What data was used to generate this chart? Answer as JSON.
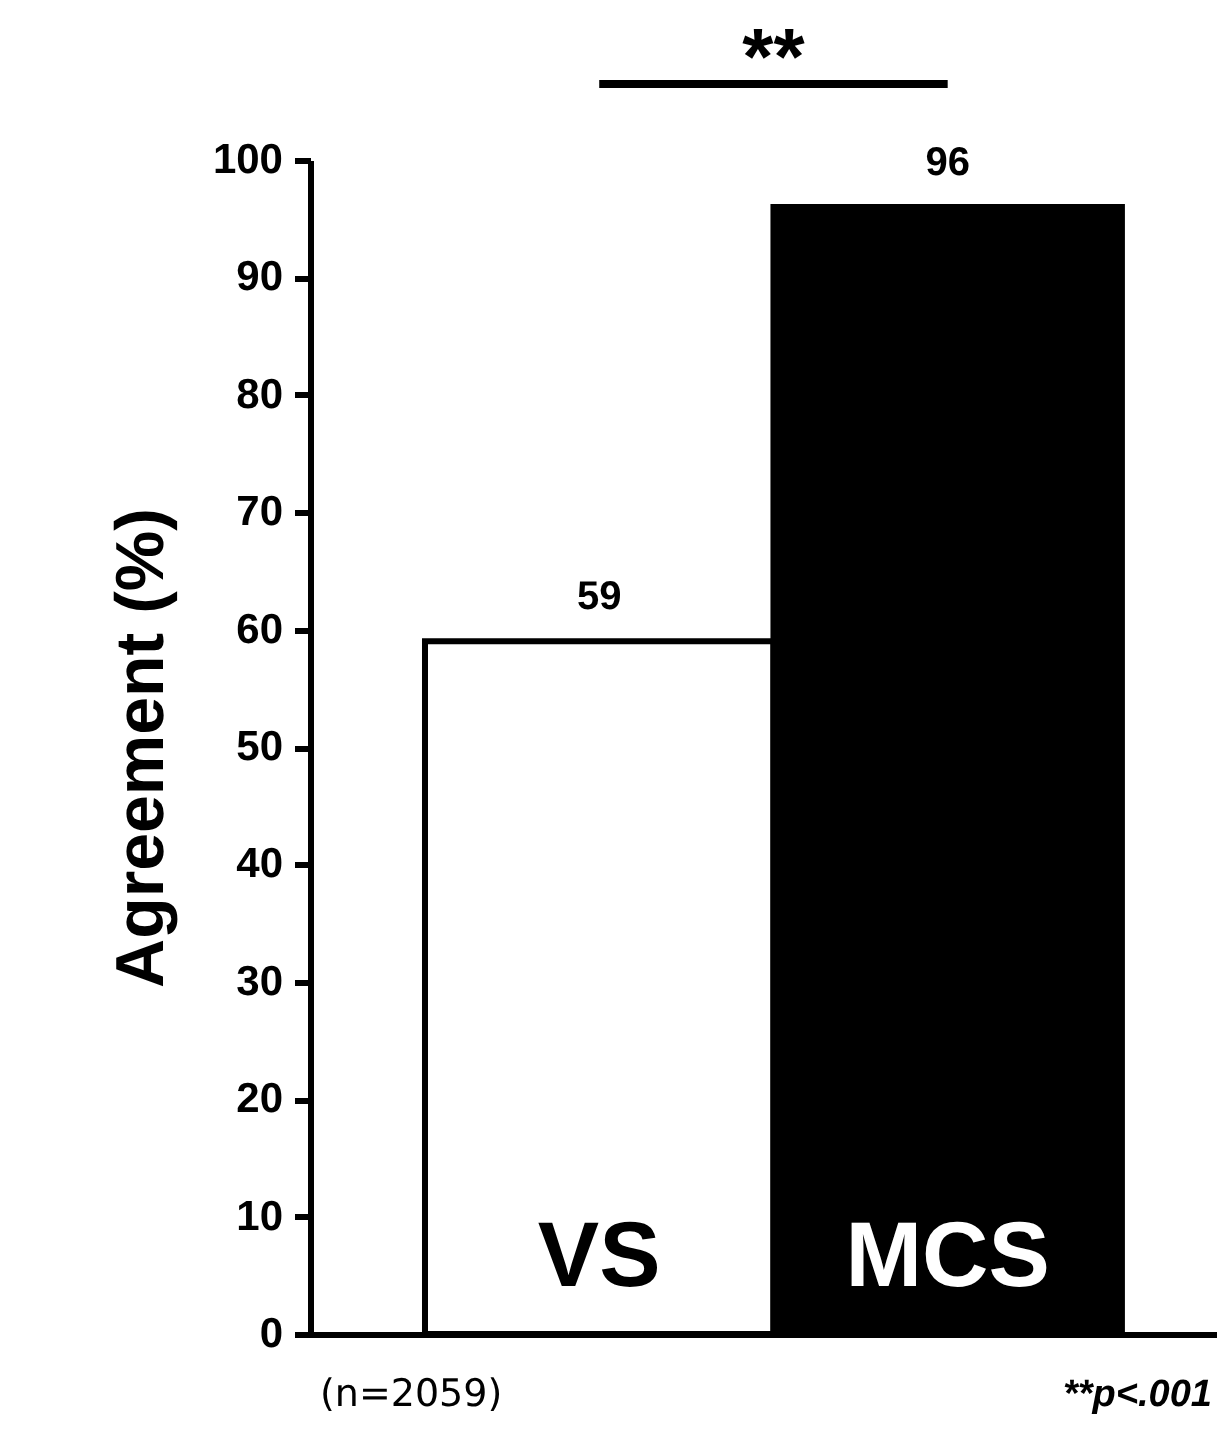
{
  "chart_data": {
    "type": "bar",
    "ylabel": "Agreement (%)",
    "categories": [
      "VS",
      "MCS"
    ],
    "values": [
      59,
      96
    ],
    "colors": [
      "#ffffff",
      "#000000"
    ],
    "ylim": [
      0,
      100
    ],
    "yticks": [
      0,
      10,
      20,
      30,
      40,
      50,
      60,
      70,
      80,
      90,
      100
    ],
    "grid": false,
    "data_labels": true,
    "annotations": [
      "**",
      "(n=2059)",
      "**p<.001"
    ]
  }
}
